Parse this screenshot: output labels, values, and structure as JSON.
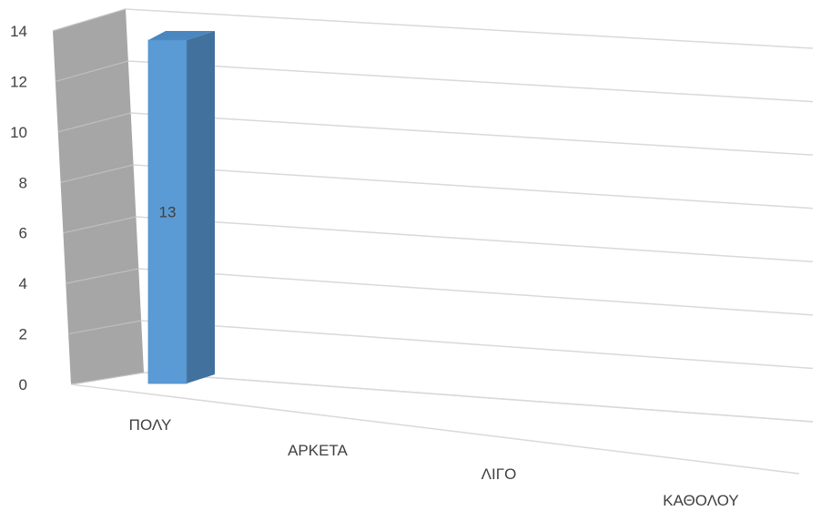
{
  "chart_data": {
    "type": "bar",
    "style": "3d-column",
    "categories": [
      "ΠΟΛΥ",
      "ΑΡΚΕΤΑ",
      "ΛΙΓΟ",
      "ΚΑΘΟΛΟΥ"
    ],
    "values": [
      13,
      null,
      null,
      null
    ],
    "data_labels": [
      "13"
    ],
    "y_ticks": [
      "0",
      "2",
      "4",
      "6",
      "8",
      "10",
      "12",
      "14"
    ],
    "ylim": [
      0,
      14
    ],
    "grid": true,
    "title": "",
    "xlabel": "",
    "ylabel": ""
  },
  "colors": {
    "bar_front": "#5b9bd5",
    "bar_side": "#41719c",
    "bar_top": "#4a86c0",
    "side_wall": "#a6a6a6",
    "gridline": "#d9d9d9"
  }
}
